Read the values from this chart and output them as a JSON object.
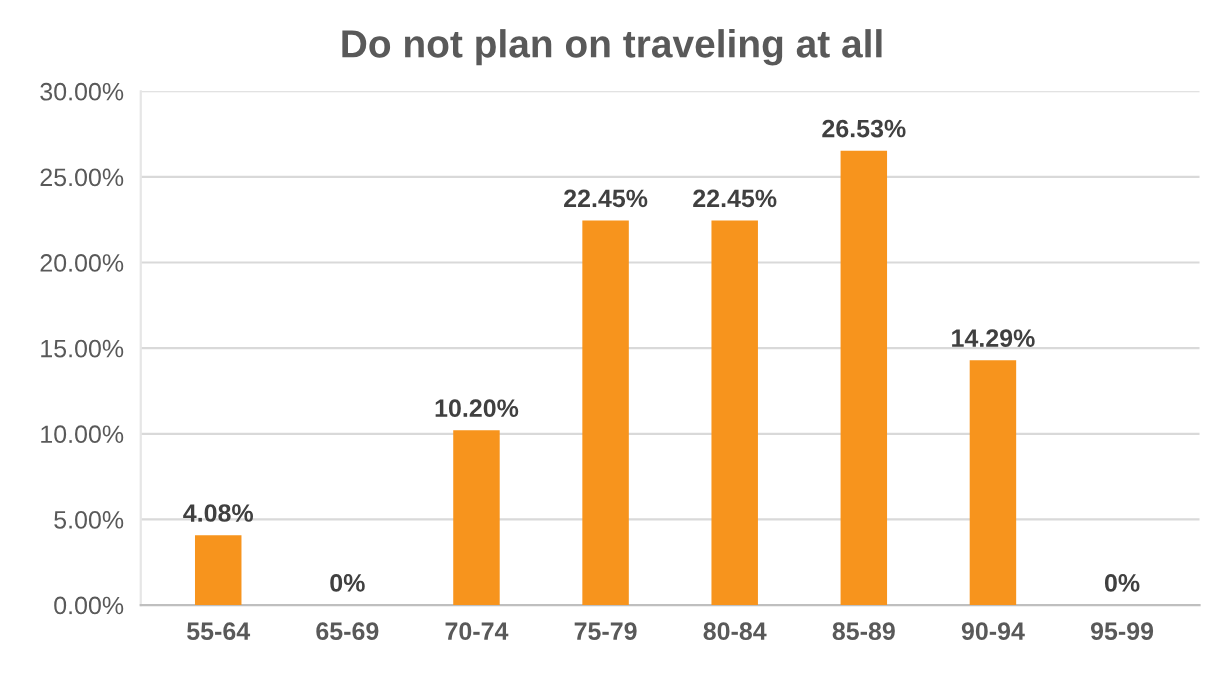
{
  "chart_data": {
    "type": "bar",
    "title": "Do not plan on traveling at all",
    "categories": [
      "55-64",
      "65-69",
      "70-74",
      "75-79",
      "80-84",
      "85-89",
      "90-94",
      "95-99"
    ],
    "values": [
      4.08,
      0,
      10.2,
      22.45,
      22.45,
      26.53,
      14.29,
      0
    ],
    "value_labels": [
      "4.08%",
      "0%",
      "10.20%",
      "22.45%",
      "22.45%",
      "26.53%",
      "14.29%",
      "0%"
    ],
    "color": "#f7941d",
    "ylim": [
      0,
      30
    ],
    "yticks": [
      {
        "value": 0,
        "label": "0.00%"
      },
      {
        "value": 5,
        "label": "5.00%"
      },
      {
        "value": 10,
        "label": "10.00%"
      },
      {
        "value": 15,
        "label": "15.00%"
      },
      {
        "value": 20,
        "label": "20.00%"
      },
      {
        "value": 25,
        "label": "25.00%"
      },
      {
        "value": 30,
        "label": "30.00%"
      }
    ],
    "grid": "y"
  }
}
